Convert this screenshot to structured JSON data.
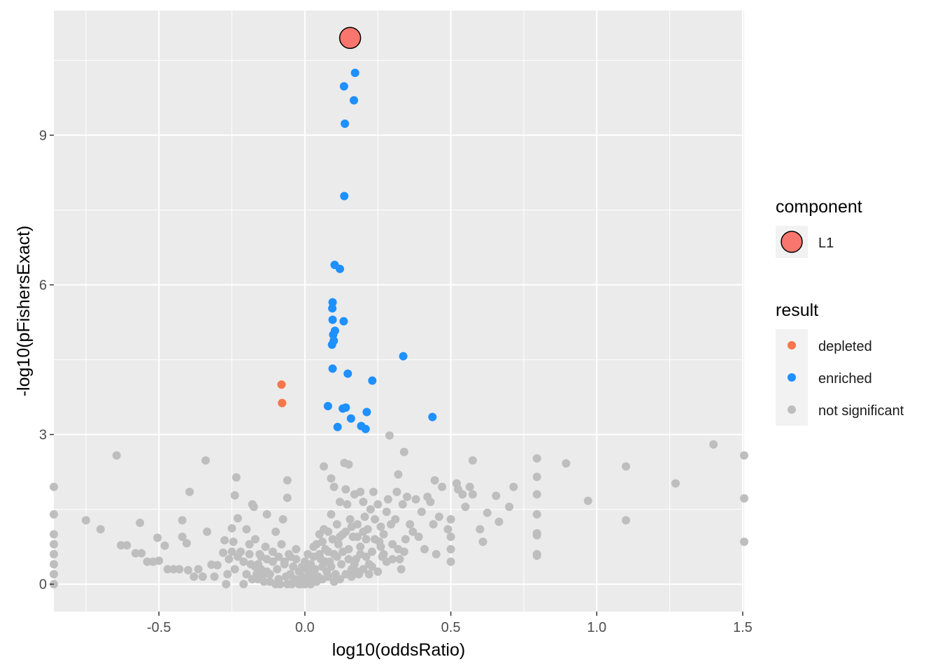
{
  "colors": {
    "panel": "#EBEBEB",
    "grid_major": "#FFFFFF",
    "depleted": "#F8754B",
    "enriched": "#1E90FF",
    "not_significant": "#BEBEBE",
    "component_L1": "#F8766D"
  },
  "chart_data": {
    "type": "scatter",
    "xlabel": "log10(oddsRatio)",
    "ylabel": "-log10(pFishersExact)",
    "xlim": [
      -0.86,
      1.505
    ],
    "ylim": [
      -0.55,
      11.5
    ],
    "x_ticks": [
      -0.5,
      0.0,
      0.5,
      1.0,
      1.5
    ],
    "x_tick_labels": [
      "-0.5",
      "0.0",
      "0.5",
      "1.0",
      "1.5"
    ],
    "y_ticks": [
      0,
      3,
      6,
      9
    ],
    "y_tick_labels": [
      "0",
      "3",
      "6",
      "9"
    ],
    "grid": true,
    "legend_position": "right",
    "legends": [
      {
        "title": "component",
        "entries": [
          {
            "label": "L1",
            "key": "component_L1",
            "shape": "large-circle-outlined"
          }
        ]
      },
      {
        "title": "result",
        "entries": [
          {
            "label": "depleted",
            "key": "depleted"
          },
          {
            "label": "enriched",
            "key": "enriched"
          },
          {
            "label": "not significant",
            "key": "not_significant"
          }
        ]
      }
    ],
    "highlight": {
      "component": "L1",
      "x": 0.155,
      "y": 10.95
    },
    "series": [
      {
        "name": "depleted",
        "points": [
          [
            -0.08,
            4.0
          ],
          [
            -0.078,
            3.63
          ]
        ]
      },
      {
        "name": "enriched",
        "points": [
          [
            0.172,
            10.25
          ],
          [
            0.134,
            9.98
          ],
          [
            0.168,
            9.7
          ],
          [
            0.137,
            9.23
          ],
          [
            0.135,
            7.78
          ],
          [
            0.102,
            6.4
          ],
          [
            0.12,
            6.32
          ],
          [
            0.095,
            5.65
          ],
          [
            0.094,
            5.53
          ],
          [
            0.133,
            5.27
          ],
          [
            0.095,
            5.3
          ],
          [
            0.103,
            5.08
          ],
          [
            0.097,
            5.0
          ],
          [
            0.099,
            4.88
          ],
          [
            0.093,
            4.8
          ],
          [
            0.337,
            4.57
          ],
          [
            0.095,
            4.32
          ],
          [
            0.147,
            4.22
          ],
          [
            0.231,
            4.08
          ],
          [
            0.079,
            3.57
          ],
          [
            0.13,
            3.52
          ],
          [
            0.14,
            3.54
          ],
          [
            0.212,
            3.45
          ],
          [
            0.437,
            3.35
          ],
          [
            0.158,
            3.32
          ],
          [
            0.112,
            3.15
          ],
          [
            0.193,
            3.17
          ],
          [
            0.208,
            3.11
          ]
        ]
      },
      {
        "name": "not significant",
        "points": [
          [
            -0.86,
            1.95
          ],
          [
            -0.86,
            1.4
          ],
          [
            -0.86,
            1.0
          ],
          [
            -0.86,
            0.8
          ],
          [
            -0.86,
            0.6
          ],
          [
            -0.86,
            0.4
          ],
          [
            -0.86,
            0.2
          ],
          [
            -0.86,
            0.0
          ],
          [
            -0.75,
            1.28
          ],
          [
            -0.7,
            1.1
          ],
          [
            -0.645,
            2.58
          ],
          [
            -0.63,
            0.78
          ],
          [
            -0.61,
            0.78
          ],
          [
            -0.58,
            0.62
          ],
          [
            -0.565,
            1.23
          ],
          [
            -0.56,
            0.62
          ],
          [
            -0.54,
            0.45
          ],
          [
            -0.52,
            0.45
          ],
          [
            -0.5,
            0.47
          ],
          [
            -0.505,
            0.93
          ],
          [
            -0.48,
            0.77
          ],
          [
            -0.47,
            0.3
          ],
          [
            -0.45,
            0.3
          ],
          [
            -0.43,
            0.3
          ],
          [
            -0.42,
            1.28
          ],
          [
            -0.42,
            0.95
          ],
          [
            -0.405,
            0.82
          ],
          [
            -0.4,
            0.28
          ],
          [
            -0.395,
            1.85
          ],
          [
            -0.38,
            0.15
          ],
          [
            -0.365,
            0.3
          ],
          [
            -0.35,
            0.15
          ],
          [
            -0.34,
            2.48
          ],
          [
            -0.335,
            1.05
          ],
          [
            -0.32,
            0.39
          ],
          [
            -0.31,
            0.15
          ],
          [
            -0.3,
            0.38
          ],
          [
            -0.28,
            0.63
          ],
          [
            -0.275,
            0.88
          ],
          [
            -0.27,
            0.0
          ],
          [
            -0.265,
            0.2
          ],
          [
            -0.26,
            0.5
          ],
          [
            -0.25,
            1.12
          ],
          [
            -0.24,
            0.3
          ],
          [
            -0.245,
            0.85
          ],
          [
            -0.24,
            1.78
          ],
          [
            -0.235,
            2.14
          ],
          [
            -0.23,
            1.32
          ],
          [
            -0.22,
            0.65
          ],
          [
            -0.21,
            0.0
          ],
          [
            -0.2,
            1.1
          ],
          [
            -0.19,
            0.8
          ],
          [
            -0.185,
            0.4
          ],
          [
            -0.18,
            1.6
          ],
          [
            -0.175,
            1.55
          ],
          [
            -0.17,
            0.9
          ],
          [
            -0.165,
            0.2
          ],
          [
            -0.16,
            0.1
          ],
          [
            -0.155,
            0.6
          ],
          [
            -0.15,
            0.3
          ],
          [
            -0.14,
            0.05
          ],
          [
            -0.135,
            0.75
          ],
          [
            -0.13,
            0.5
          ],
          [
            -0.13,
            1.4
          ],
          [
            -0.12,
            0.2
          ],
          [
            -0.11,
            0.65
          ],
          [
            -0.1,
            1.05
          ],
          [
            -0.095,
            0.3
          ],
          [
            -0.09,
            0.1
          ],
          [
            -0.085,
            0.0
          ],
          [
            -0.08,
            0.8
          ],
          [
            -0.075,
            1.3
          ],
          [
            -0.07,
            0.45
          ],
          [
            -0.065,
            0.15
          ],
          [
            -0.06,
            2.08
          ],
          [
            -0.06,
            1.73
          ],
          [
            -0.055,
            0.6
          ],
          [
            -0.05,
            0.2
          ],
          [
            -0.045,
            0.0
          ],
          [
            -0.04,
            0.35
          ],
          [
            -0.035,
            0.1
          ],
          [
            -0.03,
            0.5
          ],
          [
            -0.025,
            0.05
          ],
          [
            -0.02,
            0.25
          ],
          [
            -0.015,
            0.0
          ],
          [
            -0.01,
            0.15
          ],
          [
            -0.005,
            0.05
          ],
          [
            0.0,
            0.1
          ],
          [
            0.005,
            0.3
          ],
          [
            0.01,
            0.05
          ],
          [
            0.015,
            0.2
          ],
          [
            0.02,
            0.4
          ],
          [
            0.025,
            0.15
          ],
          [
            0.03,
            0.55
          ],
          [
            0.035,
            0.3
          ],
          [
            0.04,
            0.8
          ],
          [
            0.045,
            0.15
          ],
          [
            0.05,
            1.0
          ],
          [
            0.055,
            0.5
          ],
          [
            0.06,
            0.35
          ],
          [
            0.065,
            1.1
          ],
          [
            0.065,
            2.36
          ],
          [
            0.07,
            0.7
          ],
          [
            0.075,
            0.25
          ],
          [
            0.08,
            1.05
          ],
          [
            0.085,
            0.45
          ],
          [
            0.09,
            2.12
          ],
          [
            0.09,
            1.4
          ],
          [
            0.095,
            0.9
          ],
          [
            0.1,
            1.95
          ],
          [
            0.1,
            0.6
          ],
          [
            0.105,
            0.2
          ],
          [
            0.11,
            1.2
          ],
          [
            0.115,
            0.8
          ],
          [
            0.12,
            1.65
          ],
          [
            0.125,
            0.4
          ],
          [
            0.13,
            1.0
          ],
          [
            0.135,
            2.43
          ],
          [
            0.14,
            1.9
          ],
          [
            0.145,
            1.6
          ],
          [
            0.15,
            2.4
          ],
          [
            0.15,
            0.7
          ],
          [
            0.155,
            1.3
          ],
          [
            0.16,
            0.3
          ],
          [
            0.165,
            0.95
          ],
          [
            0.17,
            1.8
          ],
          [
            0.175,
            0.5
          ],
          [
            0.18,
            1.2
          ],
          [
            0.185,
            0.2
          ],
          [
            0.19,
            1.85
          ],
          [
            0.19,
            0.75
          ],
          [
            0.2,
            1.65
          ],
          [
            0.205,
            1.35
          ],
          [
            0.21,
            0.9
          ],
          [
            0.215,
            1.1
          ],
          [
            0.22,
            0.4
          ],
          [
            0.225,
            1.5
          ],
          [
            0.23,
            0.65
          ],
          [
            0.235,
            1.85
          ],
          [
            0.24,
            1.3
          ],
          [
            0.25,
            1.6
          ],
          [
            0.255,
            0.85
          ],
          [
            0.26,
            1.15
          ],
          [
            0.265,
            0.55
          ],
          [
            0.27,
            1.0
          ],
          [
            0.28,
            1.45
          ],
          [
            0.285,
            1.7
          ],
          [
            0.29,
            2.98
          ],
          [
            0.295,
            1.2
          ],
          [
            0.3,
            0.8
          ],
          [
            0.31,
            1.3
          ],
          [
            0.315,
            1.85
          ],
          [
            0.32,
            2.2
          ],
          [
            0.325,
            0.5
          ],
          [
            0.33,
            0.3
          ],
          [
            0.335,
            1.6
          ],
          [
            0.34,
            2.65
          ],
          [
            0.345,
            0.9
          ],
          [
            0.35,
            1.75
          ],
          [
            0.36,
            1.2
          ],
          [
            0.37,
            1.05
          ],
          [
            0.38,
            1.7
          ],
          [
            0.39,
            0.95
          ],
          [
            0.4,
            1.45
          ],
          [
            0.41,
            0.7
          ],
          [
            0.42,
            1.75
          ],
          [
            0.43,
            1.65
          ],
          [
            0.44,
            1.2
          ],
          [
            0.445,
            2.08
          ],
          [
            0.45,
            0.6
          ],
          [
            0.46,
            1.35
          ],
          [
            0.47,
            1.95
          ],
          [
            0.49,
            1.1
          ],
          [
            0.5,
            0.45
          ],
          [
            0.5,
            0.7
          ],
          [
            0.5,
            0.95
          ],
          [
            0.5,
            1.3
          ],
          [
            0.52,
            2.02
          ],
          [
            0.525,
            1.9
          ],
          [
            0.54,
            1.8
          ],
          [
            0.55,
            1.55
          ],
          [
            0.565,
            1.95
          ],
          [
            0.575,
            1.8
          ],
          [
            0.575,
            2.48
          ],
          [
            0.6,
            1.1
          ],
          [
            0.61,
            0.85
          ],
          [
            0.625,
            1.43
          ],
          [
            0.655,
            1.77
          ],
          [
            0.665,
            1.25
          ],
          [
            0.7,
            1.55
          ],
          [
            0.715,
            1.95
          ],
          [
            0.795,
            2.52
          ],
          [
            0.795,
            2.15
          ],
          [
            0.795,
            1.8
          ],
          [
            0.795,
            1.4
          ],
          [
            0.795,
            1.02
          ],
          [
            0.795,
            0.98
          ],
          [
            0.795,
            0.6
          ],
          [
            0.795,
            0.57
          ],
          [
            0.895,
            2.42
          ],
          [
            0.97,
            1.67
          ],
          [
            1.1,
            2.36
          ],
          [
            1.1,
            1.28
          ],
          [
            1.27,
            2.02
          ],
          [
            1.4,
            2.8
          ],
          [
            1.505,
            2.58
          ],
          [
            1.505,
            1.72
          ],
          [
            1.505,
            0.85
          ],
          [
            0.0,
            0.0
          ],
          [
            0.02,
            0.0
          ],
          [
            0.04,
            0.05
          ],
          [
            0.06,
            0.1
          ],
          [
            0.08,
            0.15
          ],
          [
            0.1,
            0.05
          ],
          [
            0.12,
            0.1
          ],
          [
            0.14,
            0.2
          ],
          [
            0.16,
            0.15
          ],
          [
            0.18,
            0.25
          ],
          [
            0.2,
            0.3
          ],
          [
            0.22,
            0.2
          ],
          [
            -0.02,
            0.0
          ],
          [
            -0.04,
            0.05
          ],
          [
            -0.06,
            0.0
          ],
          [
            -0.1,
            0.0
          ],
          [
            -0.12,
            0.05
          ],
          [
            -0.14,
            0.2
          ],
          [
            -0.16,
            0.4
          ],
          [
            -0.18,
            0.1
          ],
          [
            -0.2,
            0.2
          ],
          [
            0.07,
            0.45
          ],
          [
            0.09,
            0.35
          ],
          [
            0.11,
            0.55
          ],
          [
            0.13,
            0.65
          ],
          [
            0.15,
            0.5
          ],
          [
            0.17,
            0.4
          ],
          [
            0.19,
            0.6
          ],
          [
            0.21,
            0.55
          ],
          [
            0.23,
            0.35
          ],
          [
            0.25,
            0.25
          ],
          [
            0.27,
            0.6
          ],
          [
            0.05,
            0.6
          ],
          [
            0.03,
            0.75
          ],
          [
            0.06,
            0.85
          ],
          [
            0.08,
            0.65
          ],
          [
            0.12,
            0.95
          ],
          [
            0.14,
            1.05
          ],
          [
            0.16,
            1.15
          ],
          [
            0.18,
            0.95
          ],
          [
            0.2,
            1.05
          ],
          [
            0.24,
            0.9
          ],
          [
            0.26,
            0.75
          ],
          [
            0.28,
            0.45
          ],
          [
            0.3,
            0.5
          ],
          [
            0.32,
            0.7
          ],
          [
            0.34,
            0.65
          ],
          [
            -0.03,
            0.7
          ],
          [
            -0.05,
            0.55
          ],
          [
            -0.07,
            0.4
          ],
          [
            -0.09,
            0.55
          ],
          [
            -0.11,
            0.45
          ],
          [
            -0.13,
            0.25
          ],
          [
            -0.15,
            0.55
          ],
          [
            -0.17,
            0.35
          ],
          [
            -0.19,
            0.6
          ],
          [
            -0.21,
            0.45
          ],
          [
            -0.23,
            0.55
          ],
          [
            -0.25,
            0.65
          ],
          [
            0.0,
            0.45
          ],
          [
            0.01,
            0.6
          ],
          [
            0.015,
            0.3
          ],
          [
            -0.01,
            0.35
          ]
        ]
      }
    ]
  }
}
